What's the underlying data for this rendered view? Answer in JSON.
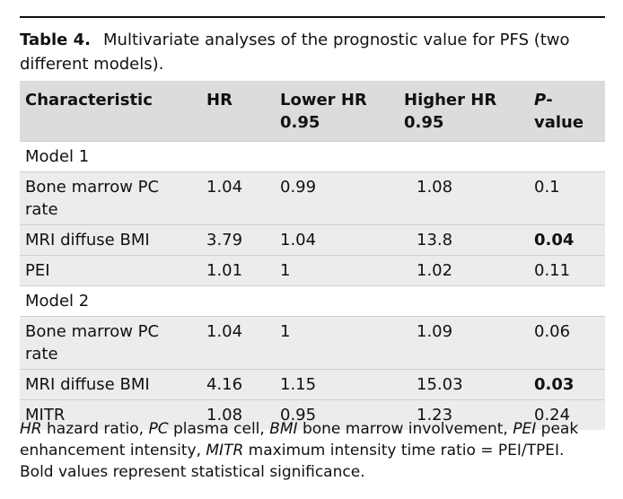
{
  "caption": {
    "label": "Table 4.",
    "text": "Multivariate analyses of the prognostic value for PFS (two different models)."
  },
  "headers": {
    "characteristic": "Characteristic",
    "hr": "HR",
    "lower": "Lower HR 0.95",
    "higher": "Higher HR 0.95",
    "p_prefix": "P",
    "p_suffix": "-value"
  },
  "sections": [
    {
      "title": "Model 1",
      "rows": [
        {
          "characteristic": "Bone marrow PC rate",
          "hr": "1.04",
          "lower": "0.99",
          "higher": "1.08",
          "p": "0.1",
          "p_bold": false
        },
        {
          "characteristic": "MRI diffuse BMI",
          "hr": "3.79",
          "lower": "1.04",
          "higher": "13.8",
          "p": "0.04",
          "p_bold": true
        },
        {
          "characteristic": "PEI",
          "hr": "1.01",
          "lower": "1",
          "higher": "1.02",
          "p": "0.11",
          "p_bold": false
        }
      ]
    },
    {
      "title": "Model 2",
      "rows": [
        {
          "characteristic": "Bone marrow PC rate",
          "hr": "1.04",
          "lower": "1",
          "higher": "1.09",
          "p": "0.06",
          "p_bold": false
        },
        {
          "characteristic": "MRI diffuse BMI",
          "hr": "4.16",
          "lower": "1.15",
          "higher": "15.03",
          "p": "0.03",
          "p_bold": true
        },
        {
          "characteristic": "MITR",
          "hr": "1.08",
          "lower": "0.95",
          "higher": "1.23",
          "p": "0.24",
          "p_bold": false
        }
      ]
    }
  ],
  "footnote": {
    "hr_abbr": "HR",
    "hr_def": " hazard ratio, ",
    "pc_abbr": "PC",
    "pc_def": " plasma cell, ",
    "bmi_abbr": "BMI",
    "bmi_def": " bone marrow involvement, ",
    "pei_abbr": "PEI",
    "pei_def": " peak enhancement intensity, ",
    "mitr_abbr": "MITR",
    "mitr_def": " maximum intensity time ratio = PEI/TPEI.",
    "significance": "Bold values represent statistical significance."
  }
}
